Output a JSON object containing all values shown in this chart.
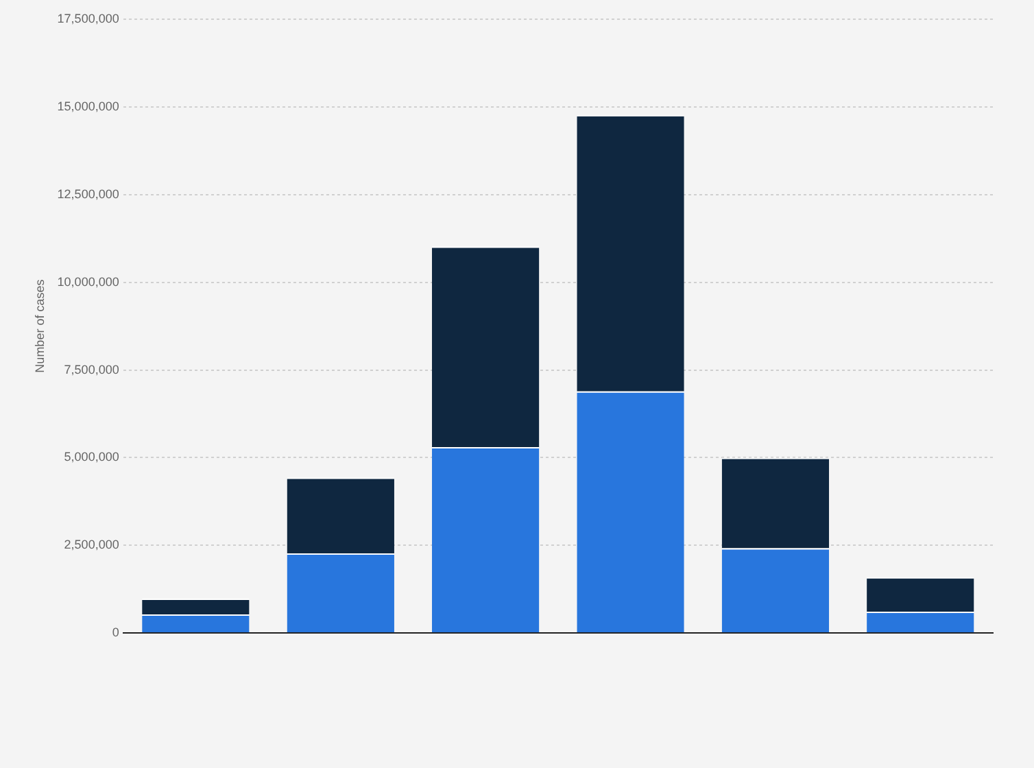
{
  "chart_data": {
    "type": "bar",
    "ylabel": "Number of cases",
    "categories": [
      null,
      null,
      null,
      null,
      null,
      null
    ],
    "stacked": true,
    "series": [
      {
        "color": "#2876dd",
        "values": [
          530000,
          2270000,
          5300000,
          6890000,
          2420000,
          610000
        ]
      },
      {
        "color": "#0f2740",
        "values": [
          450000,
          2160000,
          5720000,
          7880000,
          2580000,
          980000
        ]
      }
    ],
    "ylim": [
      0,
      17500000
    ],
    "yticks": [
      {
        "value": 0,
        "label": "0"
      },
      {
        "value": 2500000,
        "label": "2,500,000"
      },
      {
        "value": 5000000,
        "label": "5,000,000"
      },
      {
        "value": 7500000,
        "label": "7,500,000"
      },
      {
        "value": 10000000,
        "label": "10,000,000"
      },
      {
        "value": 12500000,
        "label": "12,500,000"
      },
      {
        "value": 15000000,
        "label": "15,000,000"
      },
      {
        "value": 17500000,
        "label": "17,500,000"
      }
    ],
    "grid": "y",
    "legend": false
  }
}
